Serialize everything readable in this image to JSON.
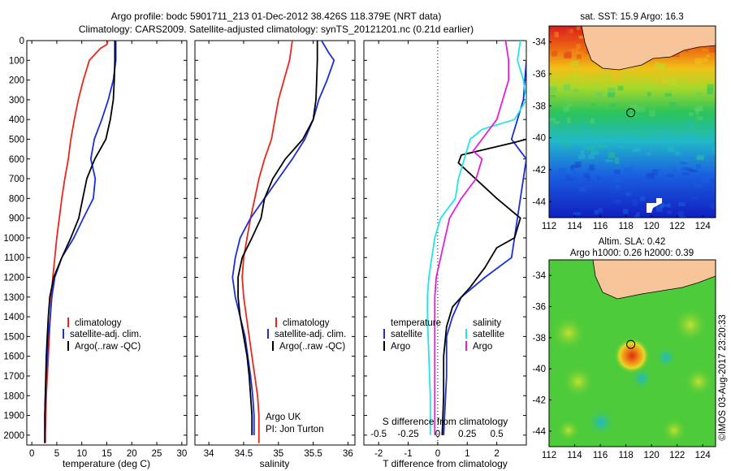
{
  "header": {
    "line1": "Argo profile: bodc 5901711_213 01-Dec-2012 38.426S 118.379E (NRT data)",
    "line2": "Climatology: CARS2009. Satellite-adjusted climatology: synTS_20121201.nc (0.21d earlier)"
  },
  "colors": {
    "climatology": "#e8261b",
    "satellite": "#1a2fd6",
    "argo": "#000000",
    "sat_salinity": "#22e6e6",
    "argo_salinity": "#e020d8",
    "land": "#f8c49a"
  },
  "chart_data": [
    {
      "type": "line",
      "name": "temperature-profile",
      "xlabel": "temperature (deg C)",
      "ylabel": "",
      "xlim": [
        -1,
        31
      ],
      "ylim": [
        2050,
        0
      ],
      "xticks": [
        0,
        5,
        10,
        15,
        20,
        25,
        30
      ],
      "yticks": [
        0,
        100,
        200,
        300,
        400,
        500,
        600,
        700,
        800,
        900,
        1000,
        1100,
        1200,
        1300,
        1400,
        1500,
        1600,
        1700,
        1800,
        1900,
        2000
      ],
      "legend": {
        "placement": "center",
        "entries": [
          "climatology",
          "satellite-adj. clim.",
          "Argo(..raw -QC)"
        ]
      },
      "series": [
        {
          "name": "climatology",
          "color": "#e8261b",
          "points": [
            [
              15.2,
              0
            ],
            [
              15,
              20
            ],
            [
              13.7,
              40
            ],
            [
              12.6,
              70
            ],
            [
              11.5,
              100
            ],
            [
              10.3,
              200
            ],
            [
              9.3,
              300
            ],
            [
              8.5,
              400
            ],
            [
              7.8,
              500
            ],
            [
              7.3,
              600
            ],
            [
              6.6,
              700
            ],
            [
              6,
              800
            ],
            [
              5.5,
              900
            ],
            [
              5,
              1000
            ],
            [
              4.6,
              1100
            ],
            [
              4.2,
              1200
            ],
            [
              3.9,
              1300
            ],
            [
              3.7,
              1400
            ],
            [
              3.5,
              1500
            ],
            [
              3.3,
              1600
            ],
            [
              3.1,
              1700
            ],
            [
              2.9,
              1800
            ],
            [
              2.8,
              1900
            ],
            [
              2.7,
              2000
            ],
            [
              2.7,
              2040
            ]
          ]
        },
        {
          "name": "satellite-adj. clim.",
          "color": "#1a2fd6",
          "points": [
            [
              16.8,
              0
            ],
            [
              16.8,
              100
            ],
            [
              16.3,
              200
            ],
            [
              15.3,
              300
            ],
            [
              14,
              400
            ],
            [
              12.5,
              500
            ],
            [
              11.8,
              600
            ],
            [
              12.7,
              700
            ],
            [
              12.3,
              800
            ],
            [
              10.3,
              900
            ],
            [
              8.4,
              1000
            ],
            [
              6,
              1100
            ],
            [
              4.6,
              1200
            ],
            [
              4,
              1300
            ],
            [
              3.7,
              1400
            ],
            [
              3.3,
              1500
            ],
            [
              3.1,
              1600
            ],
            [
              2.9,
              1700
            ],
            [
              2.7,
              1800
            ],
            [
              2.6,
              1900
            ],
            [
              2.6,
              2000
            ],
            [
              2.6,
              2040
            ]
          ]
        },
        {
          "name": "Argo(..raw -QC)",
          "color": "#000000",
          "points": [
            [
              16.6,
              0
            ],
            [
              16.6,
              100
            ],
            [
              16.5,
              200
            ],
            [
              16.3,
              300
            ],
            [
              15.7,
              400
            ],
            [
              14.8,
              500
            ],
            [
              12.6,
              600
            ],
            [
              11,
              700
            ],
            [
              10.2,
              800
            ],
            [
              9.4,
              900
            ],
            [
              7.8,
              1000
            ],
            [
              6,
              1100
            ],
            [
              4.4,
              1200
            ],
            [
              3.6,
              1300
            ],
            [
              3.3,
              1400
            ],
            [
              3.1,
              1500
            ],
            [
              2.9,
              1600
            ],
            [
              2.8,
              1700
            ],
            [
              2.7,
              1800
            ],
            [
              2.6,
              1900
            ],
            [
              2.6,
              2000
            ],
            [
              2.6,
              2040
            ]
          ]
        }
      ]
    },
    {
      "type": "line",
      "name": "salinity-profile",
      "xlabel": "salinity",
      "xlim": [
        33.8,
        36.1
      ],
      "ylim": [
        2050,
        0
      ],
      "xticks": [
        "34",
        "34.5",
        "35",
        "35.5",
        "36"
      ],
      "legend": {
        "placement": "center",
        "entries": [
          "climatology",
          "satellite-adj. clim.",
          "Argo(..raw -QC)"
        ]
      },
      "annotation": [
        "Argo UK",
        "PI: Jon Turton"
      ],
      "series": [
        {
          "name": "climatology",
          "color": "#e8261b",
          "points": [
            [
              35.2,
              0
            ],
            [
              35.16,
              100
            ],
            [
              35.08,
              200
            ],
            [
              35,
              300
            ],
            [
              34.95,
              400
            ],
            [
              34.9,
              500
            ],
            [
              34.8,
              600
            ],
            [
              34.72,
              700
            ],
            [
              34.66,
              800
            ],
            [
              34.6,
              900
            ],
            [
              34.55,
              1000
            ],
            [
              34.5,
              1100
            ],
            [
              34.48,
              1200
            ],
            [
              34.5,
              1300
            ],
            [
              34.54,
              1400
            ],
            [
              34.58,
              1500
            ],
            [
              34.62,
              1600
            ],
            [
              34.66,
              1700
            ],
            [
              34.7,
              1800
            ],
            [
              34.72,
              1900
            ],
            [
              34.72,
              2000
            ],
            [
              34.72,
              2040
            ]
          ]
        },
        {
          "name": "satellite-adj. clim.",
          "color": "#1a2fd6",
          "points": [
            [
              35.62,
              0
            ],
            [
              35.72,
              60
            ],
            [
              35.8,
              100
            ],
            [
              35.7,
              200
            ],
            [
              35.58,
              300
            ],
            [
              35.5,
              400
            ],
            [
              35.38,
              500
            ],
            [
              35.2,
              600
            ],
            [
              35,
              700
            ],
            [
              34.8,
              800
            ],
            [
              34.6,
              900
            ],
            [
              34.45,
              1000
            ],
            [
              34.38,
              1100
            ],
            [
              34.34,
              1200
            ],
            [
              34.38,
              1300
            ],
            [
              34.45,
              1400
            ],
            [
              34.52,
              1500
            ],
            [
              34.56,
              1600
            ],
            [
              34.6,
              1700
            ],
            [
              34.63,
              1800
            ],
            [
              34.65,
              1900
            ],
            [
              34.65,
              2000
            ]
          ]
        },
        {
          "name": "Argo(..raw -QC)",
          "color": "#000000",
          "points": [
            [
              35.56,
              0
            ],
            [
              35.56,
              100
            ],
            [
              35.55,
              200
            ],
            [
              35.54,
              300
            ],
            [
              35.5,
              400
            ],
            [
              35.35,
              500
            ],
            [
              35.1,
              600
            ],
            [
              34.92,
              700
            ],
            [
              34.8,
              800
            ],
            [
              34.75,
              900
            ],
            [
              34.62,
              1000
            ],
            [
              34.48,
              1100
            ],
            [
              34.42,
              1200
            ],
            [
              34.42,
              1300
            ],
            [
              34.45,
              1400
            ],
            [
              34.5,
              1500
            ],
            [
              34.55,
              1600
            ],
            [
              34.58,
              1700
            ],
            [
              34.6,
              1800
            ],
            [
              34.62,
              1900
            ],
            [
              34.62,
              2000
            ]
          ]
        }
      ]
    },
    {
      "type": "line",
      "name": "difference-profile",
      "xlabel": "T difference from climatology",
      "xlabel2": "S difference from climatology",
      "xlim": [
        -2.5,
        3
      ],
      "ylim": [
        2050,
        0
      ],
      "xticks": [
        "-2",
        "-1",
        "0",
        "1",
        "2"
      ],
      "xticks2": [
        "-0.5",
        "-0.25",
        "0",
        "0.25",
        "0.5"
      ],
      "legend": {
        "placement": "center",
        "headers": [
          "temperature",
          "salinity"
        ],
        "entries": [
          "satellite",
          "Argo",
          "satellite",
          "Argo"
        ]
      },
      "series": [
        {
          "name": "temperature satellite",
          "color": "#1a2fd6",
          "points": [
            [
              3,
              100
            ],
            [
              2.9,
              300
            ],
            [
              2.5,
              500
            ],
            [
              3,
              600
            ],
            [
              2.5,
              1100
            ],
            [
              1.6,
              1200
            ],
            [
              0.8,
              1300
            ],
            [
              0.5,
              1400
            ],
            [
              0.3,
              1500
            ],
            [
              0.3,
              1700
            ],
            [
              0.2,
              2000
            ]
          ]
        },
        {
          "name": "temperature Argo",
          "color": "#000000",
          "points": [
            [
              3,
              500
            ],
            [
              2.5,
              520
            ],
            [
              0.8,
              580
            ],
            [
              0.7,
              620
            ],
            [
              2,
              800
            ],
            [
              2.8,
              900
            ],
            [
              2.6,
              1000
            ],
            [
              2,
              1050
            ],
            [
              1.6,
              1150
            ],
            [
              1.1,
              1250
            ],
            [
              0.5,
              1350
            ],
            [
              0.3,
              1450
            ],
            [
              0.2,
              1600
            ],
            [
              0.2,
              1800
            ],
            [
              0.15,
              2000
            ]
          ]
        },
        {
          "name": "salinity satellite",
          "color": "#22e6e6",
          "points": [
            [
              2.8,
              0
            ],
            [
              2.7,
              100
            ],
            [
              2.9,
              200
            ],
            [
              3,
              300
            ],
            [
              2.6,
              400
            ],
            [
              1.5,
              450
            ],
            [
              1.1,
              500
            ],
            [
              0.9,
              600
            ],
            [
              0.7,
              700
            ],
            [
              0.6,
              800
            ],
            [
              0.1,
              900
            ],
            [
              -0.1,
              1000
            ],
            [
              -0.2,
              1100
            ],
            [
              -0.3,
              1200
            ],
            [
              -0.35,
              1300
            ],
            [
              -0.35,
              1400
            ],
            [
              -0.3,
              1600
            ],
            [
              -0.25,
              1800
            ],
            [
              -0.25,
              2000
            ]
          ]
        },
        {
          "name": "salinity Argo",
          "color": "#e020d8",
          "points": [
            [
              2.3,
              0
            ],
            [
              2.4,
              100
            ],
            [
              2.4,
              200
            ],
            [
              2.2,
              300
            ],
            [
              2,
              400
            ],
            [
              1.5,
              500
            ],
            [
              1.2,
              560
            ],
            [
              1.5,
              600
            ],
            [
              1.3,
              700
            ],
            [
              0.8,
              800
            ],
            [
              0.4,
              900
            ],
            [
              0.25,
              1000
            ],
            [
              0.1,
              1100
            ],
            [
              -0.05,
              1200
            ],
            [
              -0.1,
              1300
            ],
            [
              -0.1,
              1500
            ],
            [
              -0.1,
              1700
            ],
            [
              -0.1,
              2000
            ]
          ]
        }
      ]
    },
    {
      "type": "heatmap",
      "name": "sst-map",
      "title": "sat. SST: 15.9 Argo: 16.3",
      "xlim": [
        112,
        125
      ],
      "ylim": [
        -45,
        -33
      ],
      "xticks": [
        "112",
        "114",
        "116",
        "118",
        "120",
        "122",
        "124"
      ],
      "yticks": [
        "-34",
        "-36",
        "-38",
        "-40",
        "-42",
        "-44"
      ],
      "marker": {
        "lon": 118.38,
        "lat": -38.43
      }
    },
    {
      "type": "heatmap",
      "name": "sla-map",
      "title": "Altim. SLA: 0.42",
      "subtitle": "Argo h1000: 0.26 h2000: 0.39",
      "xlim": [
        112,
        125
      ],
      "ylim": [
        -45,
        -33
      ],
      "xticks": [
        "112",
        "114",
        "116",
        "118",
        "120",
        "122",
        "124"
      ],
      "yticks": [
        "-34",
        "-36",
        "-38",
        "-40",
        "-42",
        "-44"
      ],
      "marker": {
        "lon": 118.38,
        "lat": -38.43
      }
    }
  ],
  "stamp": "©IMOS 03-Aug-2017 23:20:33"
}
